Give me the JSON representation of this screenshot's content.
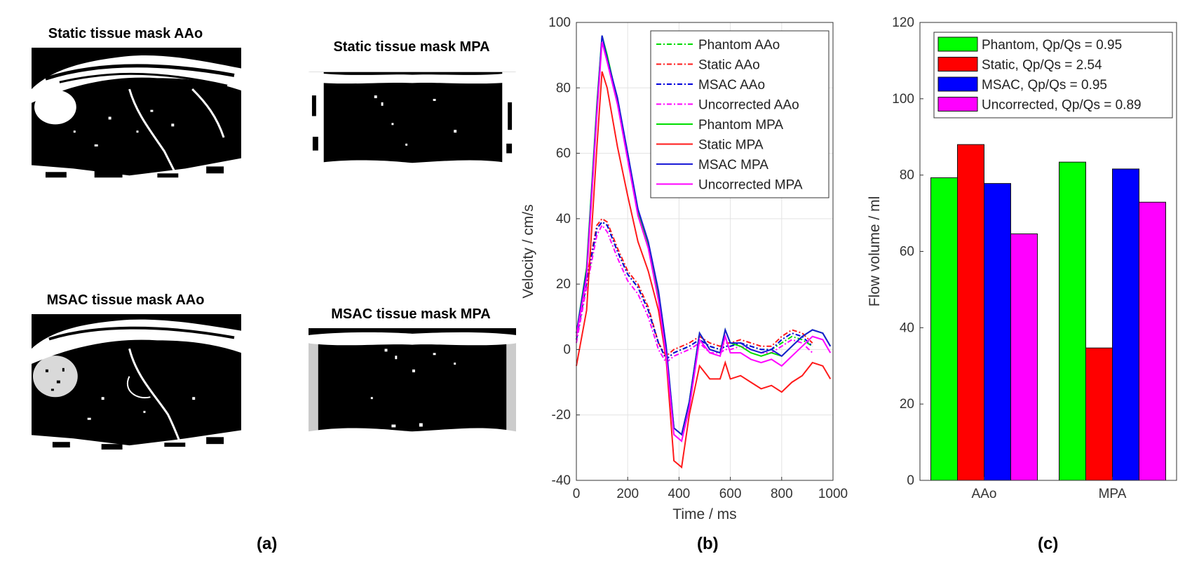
{
  "panels": {
    "a": {
      "label": "(a)",
      "masks": [
        {
          "title": "Static tissue mask AAo",
          "icon": "tissue-mask-image"
        },
        {
          "title": "Static tissue mask MPA",
          "icon": "tissue-mask-image"
        },
        {
          "title": "MSAC tissue mask AAo",
          "icon": "tissue-mask-image"
        },
        {
          "title": "MSAC tissue mask MPA",
          "icon": "tissue-mask-image"
        }
      ]
    },
    "b": {
      "label": "(b)"
    },
    "c": {
      "label": "(c)"
    }
  },
  "chart_data": [
    {
      "type": "line",
      "xlabel": "Time / ms",
      "ylabel": "Velocity / cm/s",
      "xlim": [
        0,
        1000
      ],
      "ylim": [
        -40,
        100
      ],
      "xticks": [
        0,
        200,
        400,
        600,
        800,
        1000
      ],
      "yticks": [
        -40,
        -20,
        0,
        20,
        40,
        60,
        80,
        100
      ],
      "grid": true,
      "legend_position": "top-right",
      "x": [
        0,
        40,
        80,
        100,
        120,
        160,
        200,
        240,
        280,
        320,
        350,
        380,
        410,
        440,
        480,
        520,
        560,
        580,
        600,
        640,
        680,
        720,
        760,
        800,
        840,
        880,
        920,
        960,
        990
      ],
      "series": [
        {
          "name": "Phantom AAo",
          "color": "#00dd00",
          "style": "dashdot",
          "values": [
            3,
            20,
            37,
            39,
            38,
            30,
            23,
            19,
            12,
            2,
            -3,
            -1,
            0,
            1,
            3,
            1,
            0,
            1,
            1,
            2,
            1,
            0,
            0,
            2,
            4,
            3,
            1,
            null,
            null
          ]
        },
        {
          "name": "Static AAo",
          "color": "#ff1a1a",
          "style": "dashdot",
          "values": [
            3,
            22,
            38,
            40,
            39,
            31,
            24,
            20,
            13,
            2,
            -2,
            0,
            1,
            2,
            4,
            2,
            1,
            2,
            2,
            3,
            2,
            1,
            1,
            4,
            6,
            5,
            2,
            null,
            null
          ]
        },
        {
          "name": "MSAC AAo",
          "color": "#0000dd",
          "style": "dashdot",
          "values": [
            3,
            21,
            37,
            39,
            38,
            30,
            23,
            19,
            12,
            2,
            -3,
            -1,
            0,
            1,
            3,
            1,
            0,
            1,
            1,
            2,
            1,
            0,
            0,
            3,
            5,
            4,
            1,
            null,
            null
          ]
        },
        {
          "name": "Uncorrected AAo",
          "color": "#ff00ff",
          "style": "dashdot",
          "values": [
            2,
            19,
            35,
            38,
            36,
            28,
            21,
            17,
            10,
            0,
            -4,
            -2,
            -1,
            0,
            2,
            -1,
            -1,
            0,
            0,
            1,
            0,
            -1,
            -1,
            1,
            3,
            2,
            -1,
            null,
            null
          ]
        },
        {
          "name": "Phantom MPA",
          "color": "#00dd00",
          "style": "solid",
          "values": [
            5,
            25,
            75,
            96,
            90,
            76,
            60,
            42,
            32,
            17,
            0,
            -24,
            -26,
            -16,
            5,
            0,
            -1,
            6,
            2,
            1,
            -1,
            -2,
            -1,
            -2,
            1,
            4,
            6,
            5,
            1
          ]
        },
        {
          "name": "Static MPA",
          "color": "#ff1a1a",
          "style": "solid",
          "values": [
            -5,
            12,
            62,
            85,
            80,
            62,
            47,
            33,
            24,
            12,
            -3,
            -34,
            -36,
            -20,
            -5,
            -9,
            -9,
            -4,
            -9,
            -8,
            -10,
            -12,
            -11,
            -13,
            -10,
            -8,
            -4,
            -5,
            -9
          ]
        },
        {
          "name": "MSAC MPA",
          "color": "#1a1ad6",
          "style": "solid",
          "values": [
            5,
            24,
            74,
            96,
            89,
            77,
            60,
            43,
            33,
            18,
            1,
            -24,
            -26,
            -16,
            5,
            0,
            -1,
            6,
            2,
            2,
            0,
            -1,
            0,
            -2,
            1,
            4,
            6,
            5,
            1
          ]
        },
        {
          "name": "Uncorrected MPA",
          "color": "#ff00ff",
          "style": "solid",
          "values": [
            4,
            22,
            72,
            94,
            88,
            75,
            58,
            41,
            31,
            15,
            -2,
            -26,
            -28,
            -18,
            3,
            -1,
            -2,
            4,
            -1,
            -1,
            -3,
            -4,
            -3,
            -5,
            -2,
            1,
            4,
            3,
            -1
          ]
        }
      ]
    },
    {
      "type": "bar",
      "ylabel": "Flow volume / ml",
      "categories": [
        "AAo",
        "MPA"
      ],
      "ylim": [
        0,
        120
      ],
      "yticks": [
        0,
        20,
        40,
        60,
        80,
        100,
        120
      ],
      "grid": false,
      "legend_position": "top-right",
      "series": [
        {
          "name": "Phantom, Qp/Qs = 0.95",
          "color": "#00ff00",
          "values": [
            79.3,
            83.4
          ]
        },
        {
          "name": "Static, Qp/Qs = 2.54",
          "color": "#ff0000",
          "values": [
            88.0,
            34.7
          ]
        },
        {
          "name": "MSAC, Qp/Qs = 0.95",
          "color": "#0000ff",
          "values": [
            77.8,
            81.6
          ]
        },
        {
          "name": "Uncorrected, Qp/Qs = 0.89",
          "color": "#ff00ff",
          "values": [
            64.6,
            72.9
          ]
        }
      ]
    }
  ]
}
